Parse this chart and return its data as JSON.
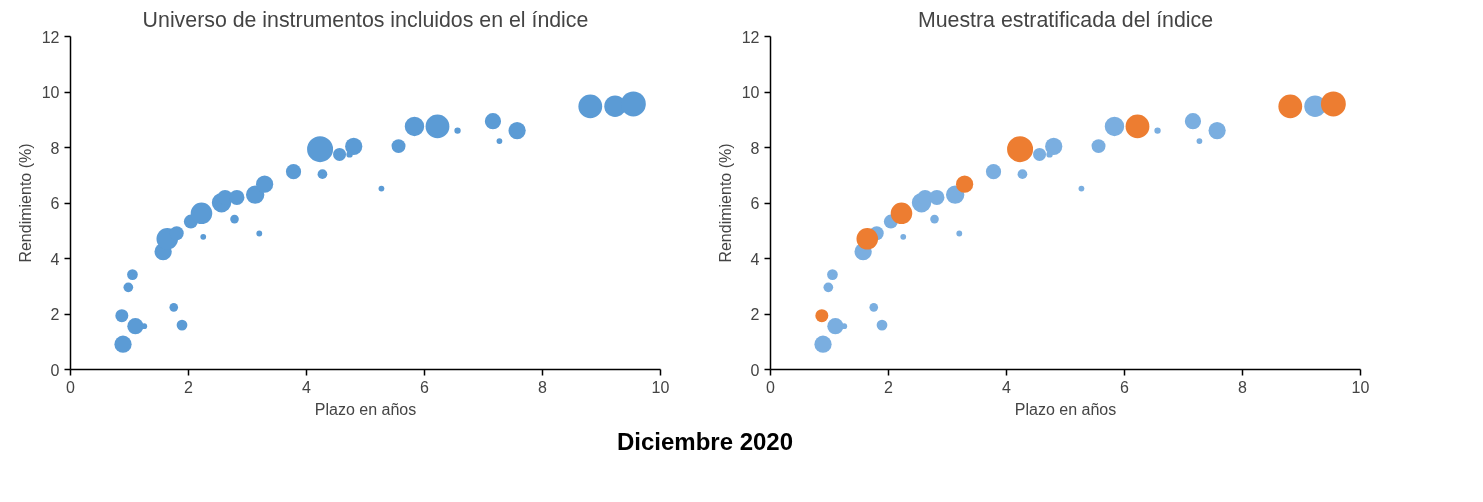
{
  "chart_data": [
    {
      "type": "bubble",
      "title": "Universo de instrumentos incluidos en el índice",
      "xlabel": "Plazo en años",
      "ylabel": "Rendimiento (%)",
      "xlim": [
        0,
        10
      ],
      "xticks": [
        0,
        2,
        4,
        6,
        8,
        10
      ],
      "ylim": [
        0,
        12
      ],
      "yticks": [
        0,
        2,
        4,
        6,
        8,
        10,
        12
      ],
      "grid": false,
      "series": [
        {
          "color": "#5b9bd5",
          "x": [
            0.89,
            0.87,
            0.98,
            1.05,
            1.1,
            1.25,
            1.75,
            1.89,
            1.57,
            1.64,
            1.8,
            2.04,
            2.22,
            2.25,
            2.56,
            2.62,
            2.82,
            2.78,
            3.13,
            3.29,
            3.2,
            3.78,
            4.23,
            4.27,
            4.56,
            4.73,
            4.8,
            5.27,
            5.56,
            5.83,
            6.22,
            6.56,
            7.16,
            7.27,
            7.57,
            8.81,
            9.23,
            9.54
          ],
          "values": [
            0.91,
            1.94,
            2.96,
            3.42,
            1.56,
            1.56,
            2.24,
            1.6,
            4.25,
            4.71,
            4.91,
            5.33,
            5.63,
            4.78,
            6.01,
            6.2,
            6.2,
            5.42,
            6.3,
            6.68,
            4.9,
            7.13,
            7.94,
            7.04,
            7.75,
            7.75,
            8.04,
            6.52,
            8.05,
            8.76,
            8.76,
            8.61,
            8.95,
            8.23,
            8.61,
            9.48,
            9.49,
            9.57
          ],
          "sizes": [
            0.44,
            0.25,
            0.14,
            0.17,
            0.39,
            0.05,
            0.11,
            0.17,
            0.44,
            0.69,
            0.29,
            0.29,
            0.69,
            0.05,
            0.56,
            0.34,
            0.34,
            0.11,
            0.5,
            0.44,
            0.05,
            0.34,
            1,
            0.14,
            0.25,
            0.06,
            0.44,
            0.05,
            0.29,
            0.56,
            0.84,
            0.06,
            0.39,
            0.05,
            0.44,
            0.84,
            0.69,
            0.92
          ]
        }
      ]
    },
    {
      "type": "bubble",
      "title": "Muestra estratificada del índice",
      "xlabel": "Plazo en años",
      "ylabel": "Rendimiento (%)",
      "xlim": [
        0,
        10
      ],
      "xticks": [
        0,
        2,
        4,
        6,
        8,
        10
      ],
      "ylim": [
        0,
        12
      ],
      "yticks": [
        0,
        2,
        4,
        6,
        8,
        10,
        12
      ],
      "grid": false,
      "annotations": [
        "Diciembre 2020"
      ],
      "series": [
        {
          "color": "#7aaee0",
          "x": [
            0.89,
            0.98,
            1.05,
            1.1,
            1.25,
            1.75,
            1.89,
            1.57,
            1.8,
            2.04,
            2.25,
            2.56,
            2.62,
            2.82,
            2.78,
            3.13,
            3.2,
            3.78,
            4.27,
            4.56,
            4.73,
            4.8,
            5.27,
            5.56,
            5.83,
            6.56,
            7.16,
            7.27,
            7.57,
            9.23
          ],
          "values": [
            0.91,
            2.96,
            3.42,
            1.56,
            1.56,
            2.24,
            1.6,
            4.25,
            4.91,
            5.33,
            4.78,
            6.01,
            6.2,
            6.2,
            5.42,
            6.3,
            4.9,
            7.13,
            7.04,
            7.75,
            7.75,
            8.04,
            6.52,
            8.05,
            8.76,
            8.61,
            8.95,
            8.23,
            8.61,
            9.49
          ],
          "sizes": [
            0.44,
            0.14,
            0.17,
            0.39,
            0.05,
            0.11,
            0.17,
            0.44,
            0.29,
            0.29,
            0.05,
            0.56,
            0.34,
            0.34,
            0.11,
            0.5,
            0.05,
            0.34,
            0.14,
            0.25,
            0.06,
            0.44,
            0.05,
            0.29,
            0.56,
            0.06,
            0.39,
            0.05,
            0.44,
            0.69
          ]
        },
        {
          "color": "#ed7d31",
          "x": [
            0.87,
            1.64,
            2.22,
            3.29,
            4.23,
            6.22,
            8.81,
            9.54
          ],
          "values": [
            1.94,
            4.71,
            5.63,
            6.68,
            7.94,
            8.76,
            9.48,
            9.57
          ],
          "sizes": [
            0.25,
            0.69,
            0.69,
            0.44,
            1,
            0.84,
            0.84,
            0.92
          ]
        }
      ]
    }
  ]
}
